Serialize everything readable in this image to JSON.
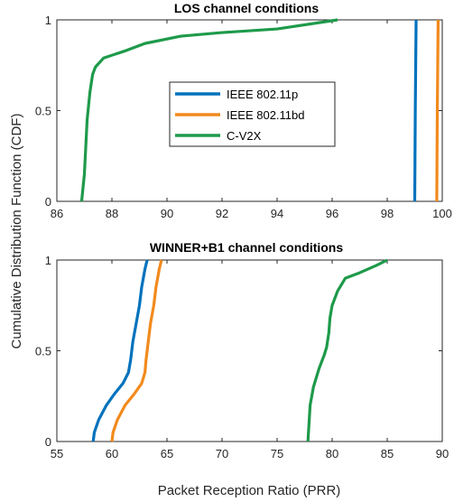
{
  "colors": {
    "series1": "#0072BD",
    "series2": "#F28A1C",
    "series3": "#1E9A4A"
  },
  "chart_data": [
    {
      "type": "line",
      "title": "LOS channel conditions",
      "xlabel": "",
      "ylabel": "Cumulative Distribution Function (CDF)",
      "xlim": [
        86,
        100
      ],
      "ylim": [
        0,
        1
      ],
      "xticks": [
        "86",
        "88",
        "90",
        "92",
        "94",
        "96",
        "98",
        "100"
      ],
      "yticks": [
        "0",
        "0.5",
        "1"
      ],
      "grid": false,
      "legend": {
        "position": "center"
      },
      "series": [
        {
          "name": "IEEE 802.11p",
          "color": "#0072BD",
          "points": [
            [
              99.0,
              0.0
            ],
            [
              99.02,
              0.5
            ],
            [
              99.05,
              1.0
            ]
          ]
        },
        {
          "name": "IEEE 802.11bd",
          "color": "#F28A1C",
          "points": [
            [
              99.8,
              0.0
            ],
            [
              99.82,
              0.5
            ],
            [
              99.85,
              1.0
            ]
          ]
        },
        {
          "name": "C-V2X",
          "color": "#1E9A4A",
          "points": [
            [
              86.9,
              0.0
            ],
            [
              87.0,
              0.15
            ],
            [
              87.05,
              0.3
            ],
            [
              87.1,
              0.45
            ],
            [
              87.2,
              0.6
            ],
            [
              87.3,
              0.7
            ],
            [
              87.4,
              0.74
            ],
            [
              87.7,
              0.79
            ],
            [
              88.5,
              0.83
            ],
            [
              89.2,
              0.87
            ],
            [
              90.5,
              0.91
            ],
            [
              92.0,
              0.93
            ],
            [
              94.0,
              0.95
            ],
            [
              96.2,
              1.0
            ]
          ]
        }
      ]
    },
    {
      "type": "line",
      "title": "WINNER+B1 channel conditions",
      "xlabel": "Packet Reception Ratio (PRR)",
      "ylabel": "",
      "xlim": [
        55,
        90
      ],
      "ylim": [
        0,
        1
      ],
      "xticks": [
        "55",
        "60",
        "65",
        "70",
        "75",
        "80",
        "85",
        "90"
      ],
      "yticks": [
        "0",
        "0.5",
        "1"
      ],
      "grid": false,
      "series": [
        {
          "name": "IEEE 802.11p",
          "color": "#0072BD",
          "points": [
            [
              58.3,
              0.0
            ],
            [
              58.4,
              0.05
            ],
            [
              58.8,
              0.12
            ],
            [
              59.5,
              0.2
            ],
            [
              60.2,
              0.26
            ],
            [
              61.0,
              0.32
            ],
            [
              61.5,
              0.38
            ],
            [
              61.7,
              0.45
            ],
            [
              61.9,
              0.55
            ],
            [
              62.2,
              0.65
            ],
            [
              62.5,
              0.75
            ],
            [
              62.7,
              0.85
            ],
            [
              63.0,
              0.95
            ],
            [
              63.2,
              1.0
            ]
          ]
        },
        {
          "name": "IEEE 802.11bd",
          "color": "#F28A1C",
          "points": [
            [
              60.0,
              0.0
            ],
            [
              60.1,
              0.05
            ],
            [
              60.5,
              0.12
            ],
            [
              61.2,
              0.2
            ],
            [
              62.0,
              0.26
            ],
            [
              62.7,
              0.32
            ],
            [
              63.0,
              0.38
            ],
            [
              63.1,
              0.45
            ],
            [
              63.3,
              0.55
            ],
            [
              63.5,
              0.65
            ],
            [
              63.8,
              0.75
            ],
            [
              64.0,
              0.85
            ],
            [
              64.3,
              0.95
            ],
            [
              64.5,
              1.0
            ]
          ]
        },
        {
          "name": "C-V2X",
          "color": "#1E9A4A",
          "points": [
            [
              77.8,
              0.0
            ],
            [
              77.9,
              0.1
            ],
            [
              78.0,
              0.2
            ],
            [
              78.3,
              0.3
            ],
            [
              78.8,
              0.4
            ],
            [
              79.3,
              0.48
            ],
            [
              79.5,
              0.52
            ],
            [
              79.7,
              0.6
            ],
            [
              79.8,
              0.68
            ],
            [
              80.0,
              0.75
            ],
            [
              80.5,
              0.83
            ],
            [
              81.2,
              0.9
            ],
            [
              82.5,
              0.93
            ],
            [
              84.0,
              0.97
            ],
            [
              85.0,
              1.0
            ]
          ]
        }
      ]
    }
  ]
}
